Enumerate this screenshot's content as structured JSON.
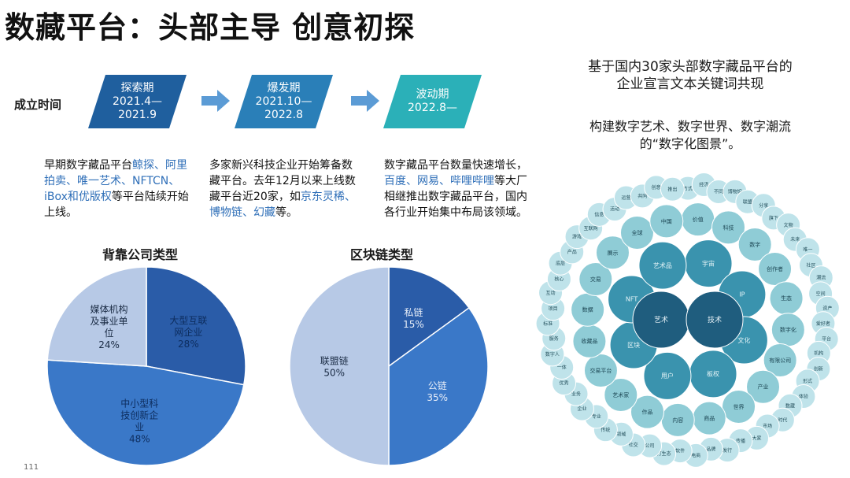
{
  "title": "数藏平台：头部主导 创意初探",
  "established_label": "成立时间",
  "phases": [
    {
      "name": "探索期",
      "dates": [
        "2021.4—",
        "2021.9"
      ],
      "color": "#1f5f9e"
    },
    {
      "name": "爆发期",
      "dates": [
        "2021.10—",
        "2022.8"
      ],
      "color": "#2a7fb8"
    },
    {
      "name": "波动期",
      "dates": [
        "2022.8—"
      ],
      "color": "#2bb0b8"
    }
  ],
  "descriptions": [
    {
      "segments": [
        {
          "text": "早期数字藏品平台",
          "hl": false
        },
        {
          "text": "鲸探、阿里拍卖、唯一艺术、NFTCN、iBox和优版权",
          "hl": true
        },
        {
          "text": "等平台陆续开始上线。",
          "hl": false
        }
      ]
    },
    {
      "segments": [
        {
          "text": "多家新兴科技企业开始筹备数藏平台。去年12月以来上线数藏平台近20家，如",
          "hl": false
        },
        {
          "text": "京东灵稀、博物链、幻藏",
          "hl": true
        },
        {
          "text": "等。",
          "hl": false
        }
      ]
    },
    {
      "segments": [
        {
          "text": "数字藏品平台数量快速增长，",
          "hl": false
        },
        {
          "text": "百度、网易、哔哩哔哩",
          "hl": true
        },
        {
          "text": "等大厂相继推出数字藏品平台，国内各行业开始集中布局该领域。",
          "hl": false
        }
      ]
    }
  ],
  "pie_company": {
    "title": "背靠公司类型",
    "slices": [
      {
        "label": [
          "大型互联",
          "网企业"
        ],
        "pct": "28%",
        "value": 28,
        "color": "#2a5ca8"
      },
      {
        "label": [
          "中小型科",
          "技创新企",
          "业"
        ],
        "pct": "48%",
        "value": 48,
        "color": "#3a78c8"
      },
      {
        "label": [
          "媒体机构",
          "及事业单",
          "位"
        ],
        "pct": "24%",
        "value": 24,
        "color": "#b7c9e6"
      }
    ]
  },
  "pie_chain": {
    "title": "区块链类型",
    "slices": [
      {
        "label": [
          "私链"
        ],
        "pct": "15%",
        "value": 15,
        "color": "#2a5ca8"
      },
      {
        "label": [
          "公链"
        ],
        "pct": "35%",
        "value": 35,
        "color": "#3a78c8"
      },
      {
        "label": [
          "联盟链"
        ],
        "pct": "50%",
        "value": 50,
        "color": "#b7c9e6"
      }
    ]
  },
  "right_text1": [
    "基于国内30家头部数字藏品平台的",
    "企业宣言文本关键词共现"
  ],
  "right_text2": [
    "构建数字艺术、数字世界、数字潮流",
    "的“数字化图景”。"
  ],
  "bubble_words": {
    "core": [
      "艺术",
      "技术"
    ],
    "ring1": [
      "宇宙",
      "IP",
      "文化",
      "板权",
      "用户",
      "区块",
      "NFT",
      "艺术品"
    ],
    "ring2": [
      "价值",
      "科技",
      "数字",
      "创作者",
      "生态",
      "数字化",
      "有限公司",
      "产业",
      "世界",
      "商品",
      "内容",
      "作品",
      "艺术家",
      "交易平台",
      "收藏品",
      "数据",
      "交易",
      "展示",
      "全球",
      "中国"
    ],
    "ring3": [
      "方式",
      "经济",
      "不同",
      "博物馆",
      "联盟",
      "分享",
      "旗下",
      "文物",
      "未来",
      "唯一",
      "社区",
      "潮流",
      "空间",
      "资产",
      "爱好者",
      "平台",
      "机构",
      "创新",
      "形式",
      "体验",
      "数藏",
      "时代",
      "市场",
      "大家",
      "传播",
      "发行",
      "品牌",
      "电商",
      "软件",
      "打生态",
      "公司",
      "社交",
      "领域",
      "传统",
      "专业",
      "企业",
      "业务",
      "优秀",
      "一体",
      "数字人",
      "服务",
      "标准",
      "项目",
      "互动",
      "核心",
      "底层",
      "产品",
      "游戏",
      "互联网",
      "信息",
      "活动",
      "运营",
      "共同",
      "创意",
      "推出"
    ]
  },
  "page_number": "111"
}
